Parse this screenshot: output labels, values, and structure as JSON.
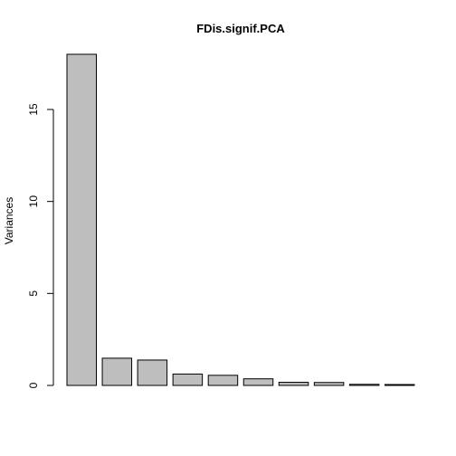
{
  "chart_data": {
    "type": "bar",
    "title": "FDis.signif.PCA",
    "ylabel": "Variances",
    "xlabel": "",
    "ylim": [
      0,
      18
    ],
    "yticks": [
      0,
      5,
      10,
      15
    ],
    "values": [
      18.0,
      1.48,
      1.38,
      0.62,
      0.55,
      0.36,
      0.17,
      0.16,
      0.06,
      0.05
    ],
    "bar_fill": "#bebebe",
    "bar_stroke": "#000000",
    "grid": false
  }
}
